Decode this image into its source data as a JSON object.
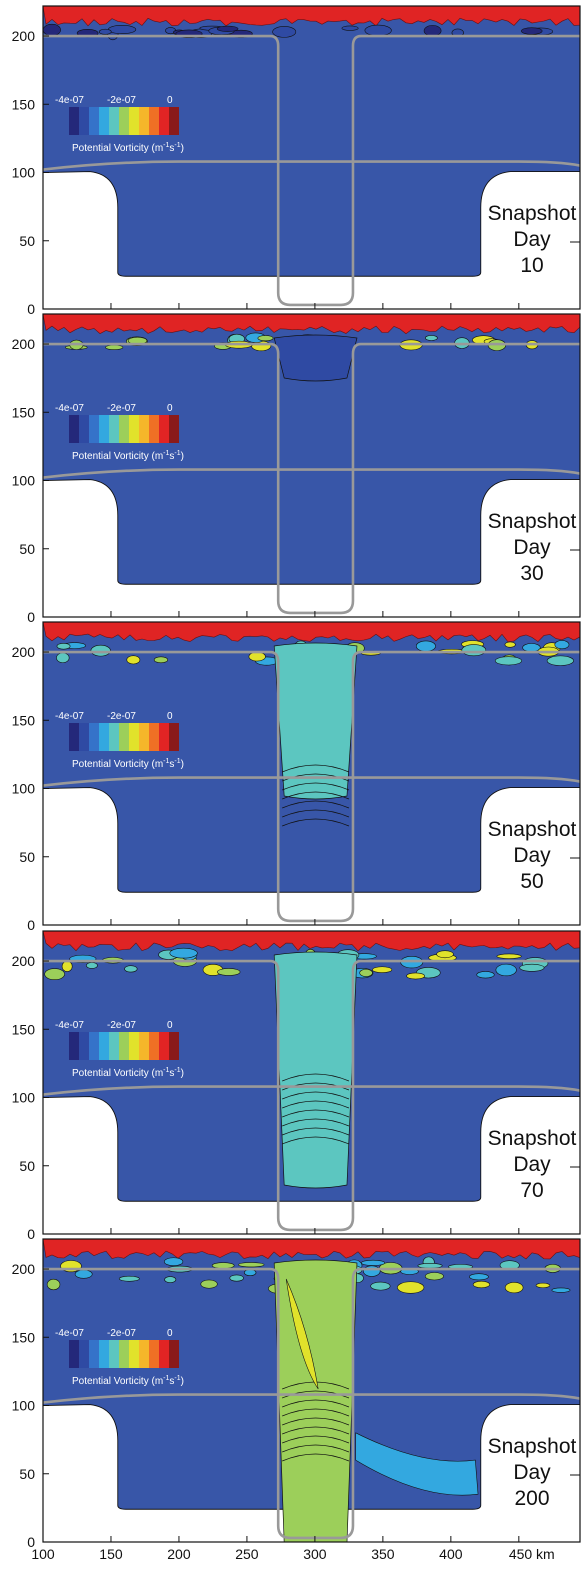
{
  "chart_data": [
    {
      "type": "heatmap",
      "snapshot_label": "Snapshot",
      "day_label": "Day",
      "day": "10",
      "severity": 0
    },
    {
      "type": "heatmap",
      "snapshot_label": "Snapshot",
      "day_label": "Day",
      "day": "30",
      "severity": 1
    },
    {
      "type": "heatmap",
      "snapshot_label": "Snapshot",
      "day_label": "Day",
      "day": "50",
      "severity": 2
    },
    {
      "type": "heatmap",
      "snapshot_label": "Snapshot",
      "day_label": "Day",
      "day": "70",
      "severity": 3
    },
    {
      "type": "heatmap",
      "snapshot_label": "Snapshot",
      "day_label": "Day",
      "day": "200",
      "severity": 4
    }
  ],
  "axes": {
    "x_ticks": [
      "100",
      "150",
      "200",
      "250",
      "300",
      "350",
      "400",
      "450 km"
    ],
    "x_values": [
      100,
      150,
      200,
      250,
      300,
      350,
      400,
      450
    ],
    "xlim": [
      100,
      495
    ],
    "y_ticks": [
      "0",
      "50",
      "100",
      "150",
      "200"
    ],
    "y_values": [
      0,
      50,
      100,
      150,
      200
    ],
    "ylim": [
      0,
      222
    ]
  },
  "colorbar": {
    "title": "Potential Vorticity",
    "units_base": "(m",
    "units_exp1": "-1",
    "units_mid": "s",
    "units_exp2": "-1",
    "units_close": ")",
    "tick_labels": [
      "-4e-07",
      "-2e-07",
      "0"
    ],
    "tick_values": [
      -4e-07,
      -2e-07,
      0
    ],
    "colors": [
      "#24287a",
      "#2f4aa3",
      "#3573c9",
      "#33a8e0",
      "#5cc6c0",
      "#9ccf5a",
      "#e1e22b",
      "#f5b62a",
      "#ef7025",
      "#e12424",
      "#8a1a1a"
    ]
  },
  "colors": {
    "background_pv": "#3856a8",
    "surface_pv": "#e02424",
    "land": "#ffffff",
    "outline_gray": "#999999"
  }
}
